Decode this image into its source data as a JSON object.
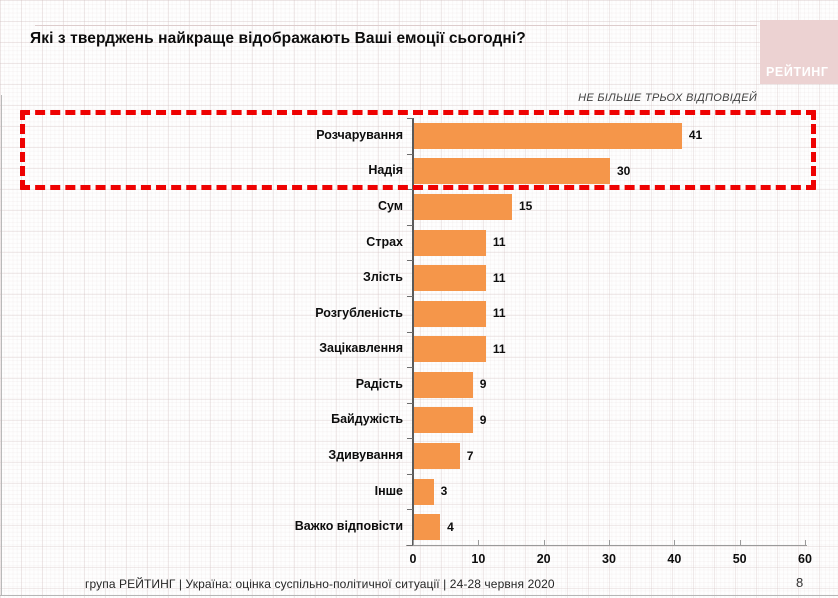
{
  "slide": {
    "title": "Які з тверджень найкраще відображають Ваші емоції сьогодні?",
    "note": "НЕ БІЛЬШЕ ТРЬОХ ВІДПОВІДЕЙ",
    "logo_text": "РЕЙТИНГ",
    "footer": "група РЕЙТИНГ |  Україна: оцінка суспільно-політичної  ситуації  | 24-28 червня  2020",
    "page_number": "8"
  },
  "colors": {
    "bar": "#f5964a",
    "highlight_dash": "#ee0202",
    "logo_bg": "#ecd2d2",
    "value_axis": "#5a5a5a",
    "category_axis": "#9a9a9a"
  },
  "chart_data": {
    "type": "bar",
    "orientation": "horizontal",
    "title": "Які з тверджень найкраще відображають Ваші емоції сьогодні?",
    "categories": [
      "Розчарування",
      "Надія",
      "Сум",
      "Страх",
      "Злість",
      "Розгубленість",
      "Зацікавлення",
      "Радість",
      "Байдужість",
      "Здивування",
      "Інше",
      "Важко відповісти"
    ],
    "values": [
      41,
      30,
      15,
      11,
      11,
      11,
      11,
      9,
      9,
      7,
      3,
      4
    ],
    "xlim": [
      0,
      60
    ],
    "xticks": [
      0,
      10,
      20,
      30,
      40,
      50,
      60
    ],
    "grid": false,
    "legend": false,
    "highlighted_categories": [
      "Розчарування",
      "Надія"
    ],
    "annotation": "НЕ БІЛЬШЕ ТРЬОХ ВІДПОВІДЕЙ"
  }
}
